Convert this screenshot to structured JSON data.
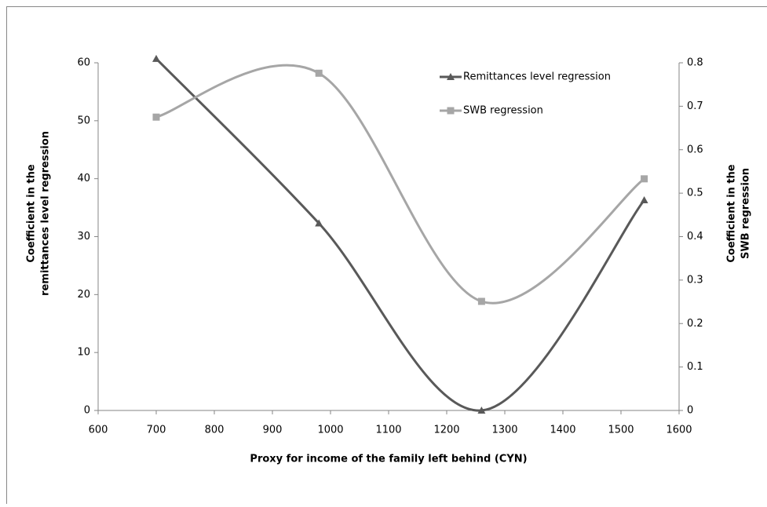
{
  "chart_data": {
    "type": "line",
    "x_label": "Proxy for income of the family left behind (CYN)",
    "y_label": [
      "Coefficient in the",
      "remittances level regression"
    ],
    "y2_label": [
      "Coefficient in the",
      "SWB regression"
    ],
    "x": [
      700,
      980,
      1260,
      1540
    ],
    "series": [
      {
        "name": "Remittances level regression",
        "color": "#595959",
        "marker": "triangle",
        "values": [
          60.7,
          32.3,
          0,
          36.3
        ]
      },
      {
        "name": "SWB regression",
        "color": "#a6a6a6",
        "marker": "square",
        "axis": "y2",
        "values": [
          0.675,
          0.776,
          0.251,
          0.533
        ]
      }
    ],
    "xlim": [
      600,
      1600
    ],
    "xticks": [
      600,
      700,
      800,
      900,
      1000,
      1100,
      1200,
      1300,
      1400,
      1500,
      1600
    ],
    "ylim": [
      0,
      60
    ],
    "yticks": [
      0,
      10,
      20,
      30,
      40,
      50,
      60
    ],
    "y2lim": [
      0,
      0.8
    ],
    "y2ticks": [
      0,
      0.1,
      0.2,
      0.3,
      0.4,
      0.5,
      0.6,
      0.7,
      0.8
    ],
    "smooth": true,
    "legend": "top-right"
  }
}
